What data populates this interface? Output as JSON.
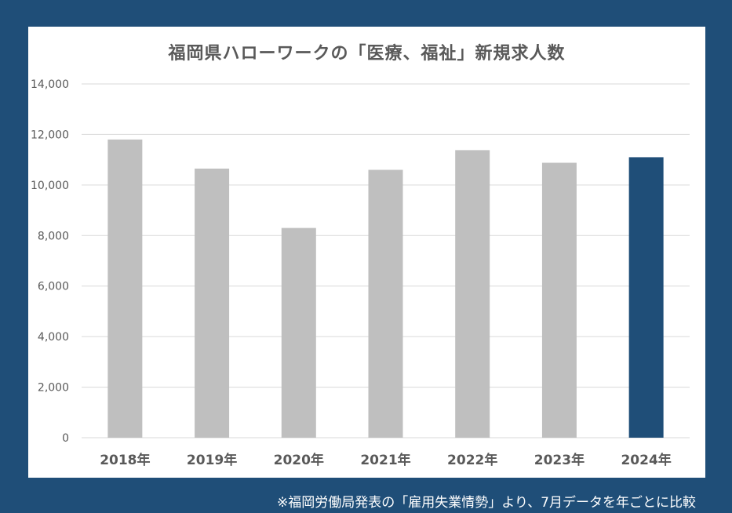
{
  "chart_data": {
    "type": "bar",
    "title": "福岡県ハローワークの「医療、福祉」新規求人数",
    "categories": [
      "2018年",
      "2019年",
      "2020年",
      "2021年",
      "2022年",
      "2023年",
      "2024年"
    ],
    "values": [
      11800,
      10650,
      8300,
      10600,
      11380,
      10880,
      11100
    ],
    "highlight_index": 6,
    "ylim": [
      0,
      14000
    ],
    "yticks": [
      0,
      2000,
      4000,
      6000,
      8000,
      10000,
      12000,
      14000
    ],
    "ytick_labels": [
      "0",
      "2,000",
      "4,000",
      "6,000",
      "8,000",
      "10,000",
      "12,000",
      "14,000"
    ],
    "xlabel": "",
    "ylabel": "",
    "grid": true,
    "colors": {
      "bar": "#bfbfbf",
      "highlight": "#1f4e78",
      "grid": "#d9d9d9",
      "axis_text": "#595959"
    }
  },
  "footnote": "※福岡労働局発表の「雇用失業情勢」より、7月データを年ごとに比較"
}
